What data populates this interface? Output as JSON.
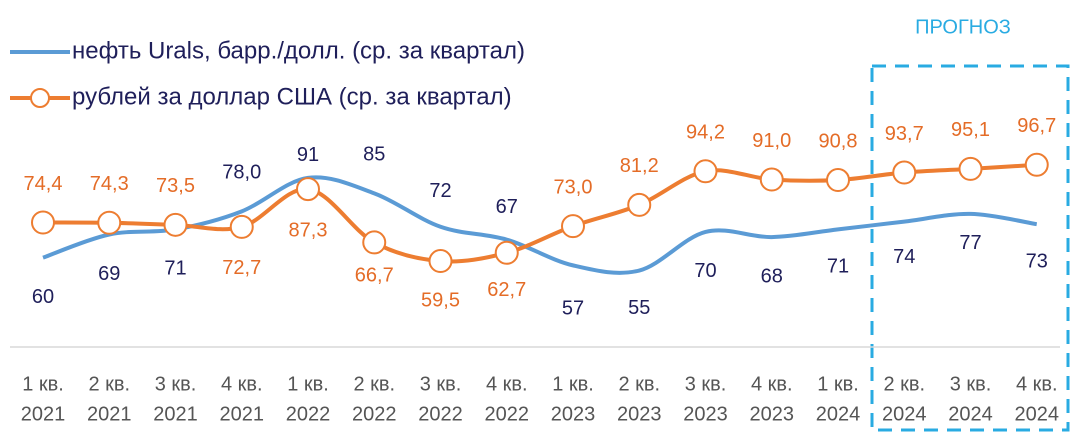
{
  "chart_data": {
    "type": "line",
    "annotation": "ПРОГНОЗ",
    "categories": [
      [
        "1 кв.",
        "2021"
      ],
      [
        "2 кв.",
        "2021"
      ],
      [
        "3 кв.",
        "2021"
      ],
      [
        "4 кв.",
        "2021"
      ],
      [
        "1 кв.",
        "2022"
      ],
      [
        "2 кв.",
        "2022"
      ],
      [
        "3 кв.",
        "2022"
      ],
      [
        "4 кв.",
        "2022"
      ],
      [
        "1 кв.",
        "2023"
      ],
      [
        "2 кв.",
        "2023"
      ],
      [
        "3 кв.",
        "2023"
      ],
      [
        "4 кв.",
        "2023"
      ],
      [
        "1 кв.",
        "2024"
      ],
      [
        "2 кв.",
        "2024"
      ],
      [
        "3 кв.",
        "2024"
      ],
      [
        "4 кв.",
        "2024"
      ]
    ],
    "ylim": [
      28,
      113.5
    ],
    "y2lim": [
      29,
      114
    ],
    "series": [
      {
        "name": "нефть Urals, барр./долл. (ср. за квартал)",
        "color": "#5b9bd5",
        "values": [
          60,
          69,
          71,
          78,
          91,
          85,
          72,
          67,
          57,
          55,
          70,
          68,
          71,
          74,
          77,
          73
        ],
        "value_labels": [
          "60",
          "69",
          "71",
          "78,0",
          "91",
          "85",
          "72",
          "67",
          "57",
          "55",
          "70",
          "68",
          "71",
          "74",
          "77",
          "73"
        ]
      },
      {
        "name": "рублей за доллар США (ср. за квартал)",
        "color": "#ed7d31",
        "axis": "y2",
        "values": [
          74.4,
          74.3,
          73.5,
          72.7,
          87.3,
          66.7,
          59.5,
          62.7,
          73.0,
          81.2,
          94.2,
          91.0,
          90.8,
          93.7,
          95.1,
          96.7
        ],
        "value_labels": [
          "74,4",
          "74,3",
          "73,5",
          "72,7",
          "87,3",
          "66,7",
          "59,5",
          "62,7",
          "73,0",
          "81,2",
          "94,2",
          "91,0",
          "90,8",
          "93,7",
          "95,1",
          "96,7"
        ]
      }
    ]
  }
}
